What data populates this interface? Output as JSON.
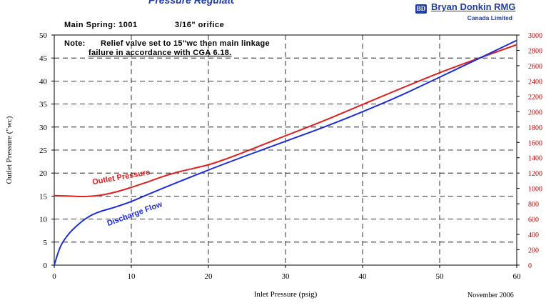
{
  "header": {
    "top_strip_text": "Pressure Regulator Capacity",
    "spring": "Main Spring: 1001",
    "orifice": "3/16\" orifice"
  },
  "logo": {
    "name": "Bryan Donkin RMG",
    "subtitle": "Canada Limited",
    "mark": "BD",
    "color": "#1f3fa8"
  },
  "note": {
    "label": "Note:",
    "line1": "Relief valve set to 15\"wc then main linkage",
    "line2": "failure in accordance with CGA 6.18."
  },
  "date": "November 2006",
  "chart_data": {
    "type": "line",
    "xlabel": "Inlet Pressure (psig)",
    "ylabel": "Outlet Pressure (\"wc)",
    "xlim": [
      0,
      60
    ],
    "ylim": [
      0,
      50
    ],
    "y2lim": [
      0,
      3000
    ],
    "x_ticks": [
      0,
      10,
      20,
      30,
      40,
      50,
      60
    ],
    "y_ticks": [
      0,
      5,
      10,
      15,
      20,
      25,
      30,
      35,
      40,
      45,
      50
    ],
    "y2_ticks": [
      0,
      200,
      400,
      600,
      800,
      1000,
      1200,
      1400,
      1600,
      1800,
      2000,
      2200,
      2400,
      2600,
      2800,
      3000
    ],
    "grid": true,
    "series": [
      {
        "name": "Outlet Pressure",
        "axis": "left",
        "color": "#e02020",
        "label_at": [
          5,
          17.5
        ],
        "label_angle": -10,
        "points": [
          [
            0,
            15.1
          ],
          [
            2,
            15.0
          ],
          [
            4,
            14.9
          ],
          [
            6,
            15.2
          ],
          [
            8,
            15.9
          ],
          [
            10,
            16.9
          ],
          [
            12,
            18.0
          ],
          [
            14,
            19.2
          ],
          [
            16,
            20.2
          ],
          [
            18,
            21.0
          ],
          [
            20,
            21.8
          ],
          [
            22,
            22.9
          ],
          [
            25,
            24.8
          ],
          [
            30,
            28.1
          ],
          [
            35,
            31.4
          ],
          [
            40,
            34.9
          ],
          [
            45,
            38.4
          ],
          [
            50,
            41.8
          ],
          [
            55,
            44.9
          ],
          [
            60,
            47.9
          ]
        ]
      },
      {
        "name": "Discharge Flow",
        "axis": "right",
        "color": "#1e2fd8",
        "label_at": [
          7,
          8.5
        ],
        "label_angle": -20,
        "points": [
          [
            0,
            0
          ],
          [
            0.5,
            160
          ],
          [
            1,
            280
          ],
          [
            2,
            420
          ],
          [
            3,
            520
          ],
          [
            4,
            600
          ],
          [
            5,
            660
          ],
          [
            6,
            700
          ],
          [
            8,
            760
          ],
          [
            10,
            830
          ],
          [
            12,
            915
          ],
          [
            15,
            1040
          ],
          [
            20,
            1240
          ],
          [
            25,
            1430
          ],
          [
            30,
            1615
          ],
          [
            35,
            1800
          ],
          [
            40,
            2000
          ],
          [
            45,
            2215
          ],
          [
            50,
            2450
          ],
          [
            55,
            2690
          ],
          [
            60,
            2930
          ]
        ]
      }
    ]
  }
}
